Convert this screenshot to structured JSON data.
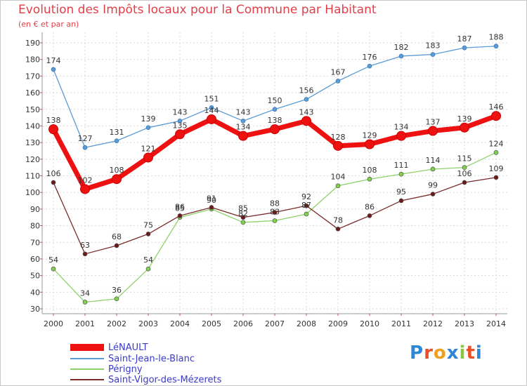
{
  "header": {
    "title": "Evolution des Impôts locaux pour la Commune par Habitant",
    "subtitle": "(en € et par an)"
  },
  "logo": {
    "text": "Proxiti",
    "letters": [
      "P",
      "r",
      "o",
      "x",
      "i",
      "t",
      "i"
    ],
    "letter_colors": [
      "#2e86d6",
      "#e8502a",
      "#f0a020",
      "#2e86d6",
      "#8cc63f",
      "#e8502a",
      "#2e86d6"
    ]
  },
  "chart_data": {
    "type": "line",
    "title": "Evolution des Impôts locaux pour la Commune par Habitant",
    "subtitle": "(en € et par an)",
    "x": [
      "2000",
      "2001",
      "2002",
      "2003",
      "2004",
      "2005",
      "2006",
      "2007",
      "2008",
      "2009",
      "2010",
      "2011",
      "2012",
      "2013",
      "2014"
    ],
    "ylim": [
      30,
      190
    ],
    "yticks": [
      "30",
      "40",
      "50",
      "60",
      "70",
      "80",
      "90",
      "100",
      "110",
      "120",
      "130",
      "140",
      "150",
      "160",
      "170",
      "180",
      "190"
    ],
    "grid": true,
    "legend_position": "bottom-left",
    "series": [
      {
        "name": "Saint-Jean-le-Blanc",
        "color": "#5b9bd5",
        "values": [
          174,
          127,
          131,
          139,
          143,
          151,
          143,
          150,
          156,
          167,
          176,
          182,
          183,
          187,
          188
        ],
        "labels": [
          "174",
          "127",
          "131",
          "139",
          "143",
          "151",
          "143",
          "150",
          "156",
          "167",
          "176",
          "182",
          "183",
          "187",
          "188"
        ]
      },
      {
        "name": "Périgny",
        "color": "#8fd16a",
        "marker_color": "#7ed34a",
        "values": [
          54,
          34,
          36,
          54,
          85,
          90,
          82,
          83,
          87,
          104,
          108,
          111,
          114,
          115,
          124
        ],
        "labels": [
          "54",
          "34",
          "36",
          "54",
          "85",
          "90",
          "82",
          "83",
          "87",
          "104",
          "108",
          "111",
          "114",
          "115",
          "124"
        ]
      },
      {
        "name": "Saint-Vigor-des-Mézerets",
        "color": "#7a2c2c",
        "marker_color": "#6b1a1a",
        "values": [
          106,
          63,
          68,
          75,
          86,
          91,
          85,
          88,
          92,
          78,
          86,
          95,
          99,
          106,
          109
        ],
        "labels": [
          "106",
          "63",
          "68",
          "75",
          "86",
          "91",
          "85",
          "88",
          "92",
          "78",
          "86",
          "95",
          "99",
          "106",
          "109"
        ]
      },
      {
        "name": "LéNAULT",
        "color": "#ee1111",
        "values": [
          138,
          102,
          108,
          121,
          135,
          144,
          134,
          138,
          143,
          128,
          129,
          134,
          137,
          139,
          146
        ],
        "labels": [
          "138",
          "102",
          "108",
          "121",
          "135",
          "144",
          "134",
          "138",
          "143",
          "128",
          "129",
          "134",
          "137",
          "139",
          "146"
        ]
      }
    ],
    "legend_order": [
      "LéNAULT",
      "Saint-Jean-le-Blanc",
      "Périgny",
      "Saint-Vigor-des-Mézerets"
    ]
  }
}
